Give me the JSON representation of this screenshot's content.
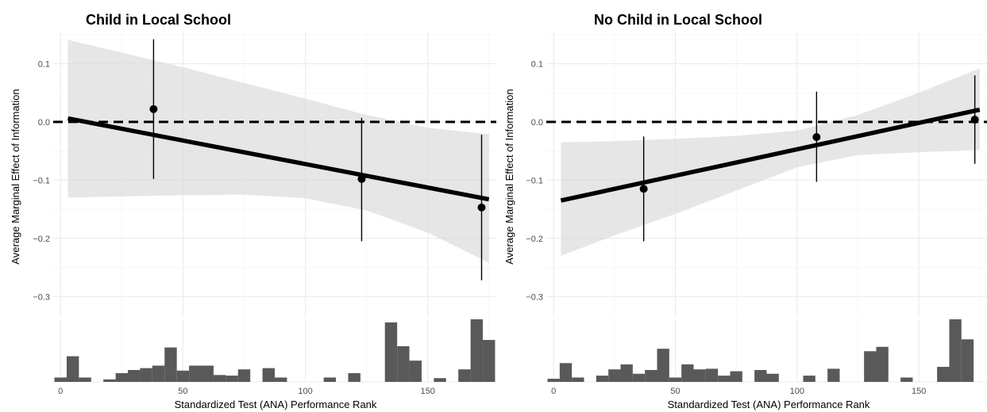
{
  "chart_data": [
    {
      "type": "scatter",
      "title": "Child in Local School",
      "xlabel": "Standardized Test (ANA) Performance Rank",
      "ylabel": "Average Marginal Effect of Information",
      "xlim": [
        -3,
        178
      ],
      "ylim": [
        -0.335,
        0.155
      ],
      "x_ticks": [
        0,
        50,
        100,
        150
      ],
      "x_tick_labels": [
        "0",
        "50",
        "100",
        "150"
      ],
      "y_ticks": [
        0.1,
        0.0,
        -0.1,
        -0.2,
        -0.3
      ],
      "y_tick_labels": [
        "0.1",
        "0.0",
        "−0.1",
        "−0.2",
        "−0.3"
      ],
      "reference_line_y": 0,
      "grid": true,
      "points": [
        {
          "x": 38,
          "y": 0.022,
          "lower": -0.098,
          "upper": 0.142
        },
        {
          "x": 123,
          "y": -0.098,
          "lower": -0.205,
          "upper": 0.007
        },
        {
          "x": 172,
          "y": -0.147,
          "lower": -0.272,
          "upper": -0.022
        }
      ],
      "fit_line": [
        {
          "x": 3,
          "y": 0.006
        },
        {
          "x": 175,
          "y": -0.133
        }
      ],
      "confidence_band": [
        {
          "x": 3,
          "lower": -0.13,
          "upper": 0.141
        },
        {
          "x": 25,
          "lower": -0.128,
          "upper": 0.119
        },
        {
          "x": 50,
          "lower": -0.126,
          "upper": 0.094
        },
        {
          "x": 75,
          "lower": -0.125,
          "upper": 0.067
        },
        {
          "x": 100,
          "lower": -0.131,
          "upper": 0.04
        },
        {
          "x": 125,
          "lower": -0.152,
          "upper": 0.012
        },
        {
          "x": 150,
          "lower": -0.19,
          "upper": -0.01
        },
        {
          "x": 175,
          "lower": -0.242,
          "upper": -0.021
        }
      ],
      "histogram": {
        "bin_width": 5,
        "bins": [
          {
            "x": 0,
            "count": 0.7
          },
          {
            "x": 5,
            "count": 4.1
          },
          {
            "x": 10,
            "count": 0.7
          },
          {
            "x": 20,
            "count": 0.4
          },
          {
            "x": 25,
            "count": 1.4
          },
          {
            "x": 30,
            "count": 1.9
          },
          {
            "x": 35,
            "count": 2.2
          },
          {
            "x": 40,
            "count": 2.6
          },
          {
            "x": 45,
            "count": 5.5
          },
          {
            "x": 50,
            "count": 1.8
          },
          {
            "x": 55,
            "count": 2.6
          },
          {
            "x": 60,
            "count": 2.6
          },
          {
            "x": 65,
            "count": 1.1
          },
          {
            "x": 70,
            "count": 1.0
          },
          {
            "x": 75,
            "count": 2.0
          },
          {
            "x": 85,
            "count": 2.2
          },
          {
            "x": 90,
            "count": 0.7
          },
          {
            "x": 110,
            "count": 0.7
          },
          {
            "x": 120,
            "count": 1.4
          },
          {
            "x": 135,
            "count": 9.5
          },
          {
            "x": 140,
            "count": 5.7
          },
          {
            "x": 145,
            "count": 3.4
          },
          {
            "x": 155,
            "count": 0.6
          },
          {
            "x": 165,
            "count": 2.0
          },
          {
            "x": 170,
            "count": 10.0
          },
          {
            "x": 175,
            "count": 6.7
          }
        ]
      }
    },
    {
      "type": "scatter",
      "title": "No Child in Local School",
      "xlabel": "Standardized Test (ANA) Performance Rank",
      "ylabel": "Average Marginal Effect of Information",
      "xlim": [
        -3,
        178
      ],
      "ylim": [
        -0.335,
        0.155
      ],
      "x_ticks": [
        0,
        50,
        100,
        150
      ],
      "x_tick_labels": [
        "0",
        "50",
        "100",
        "150"
      ],
      "y_ticks": [
        0.1,
        0.0,
        -0.1,
        -0.2,
        -0.3
      ],
      "y_tick_labels": [
        "0.1",
        "0.0",
        "−0.1",
        "−0.2",
        "−0.3"
      ],
      "reference_line_y": 0,
      "grid": true,
      "points": [
        {
          "x": 37,
          "y": -0.115,
          "lower": -0.205,
          "upper": -0.025
        },
        {
          "x": 108,
          "y": -0.026,
          "lower": -0.103,
          "upper": 0.052
        },
        {
          "x": 173,
          "y": 0.004,
          "lower": -0.072,
          "upper": 0.08
        }
      ],
      "fit_line": [
        {
          "x": 3,
          "y": -0.135
        },
        {
          "x": 175,
          "y": 0.021
        }
      ],
      "confidence_band": [
        {
          "x": 3,
          "lower": -0.23,
          "upper": -0.035
        },
        {
          "x": 25,
          "lower": -0.195,
          "upper": -0.033
        },
        {
          "x": 50,
          "lower": -0.158,
          "upper": -0.029
        },
        {
          "x": 75,
          "lower": -0.118,
          "upper": -0.024
        },
        {
          "x": 100,
          "lower": -0.078,
          "upper": -0.015
        },
        {
          "x": 125,
          "lower": -0.057,
          "upper": 0.012
        },
        {
          "x": 150,
          "lower": -0.052,
          "upper": 0.05
        },
        {
          "x": 175,
          "lower": -0.048,
          "upper": 0.092
        }
      ],
      "histogram": {
        "bin_width": 5,
        "bins": [
          {
            "x": 0,
            "count": 0.5
          },
          {
            "x": 5,
            "count": 3.0
          },
          {
            "x": 10,
            "count": 0.7
          },
          {
            "x": 20,
            "count": 1.0
          },
          {
            "x": 25,
            "count": 2.0
          },
          {
            "x": 30,
            "count": 2.8
          },
          {
            "x": 35,
            "count": 1.3
          },
          {
            "x": 40,
            "count": 1.9
          },
          {
            "x": 45,
            "count": 5.3
          },
          {
            "x": 50,
            "count": 0.7
          },
          {
            "x": 55,
            "count": 2.8
          },
          {
            "x": 60,
            "count": 2.0
          },
          {
            "x": 65,
            "count": 2.1
          },
          {
            "x": 70,
            "count": 1.0
          },
          {
            "x": 75,
            "count": 1.7
          },
          {
            "x": 85,
            "count": 1.9
          },
          {
            "x": 90,
            "count": 1.3
          },
          {
            "x": 105,
            "count": 1.0
          },
          {
            "x": 115,
            "count": 2.1
          },
          {
            "x": 130,
            "count": 4.9
          },
          {
            "x": 135,
            "count": 5.6
          },
          {
            "x": 145,
            "count": 0.7
          },
          {
            "x": 160,
            "count": 2.4
          },
          {
            "x": 165,
            "count": 10.0
          },
          {
            "x": 170,
            "count": 6.8
          }
        ]
      }
    }
  ]
}
